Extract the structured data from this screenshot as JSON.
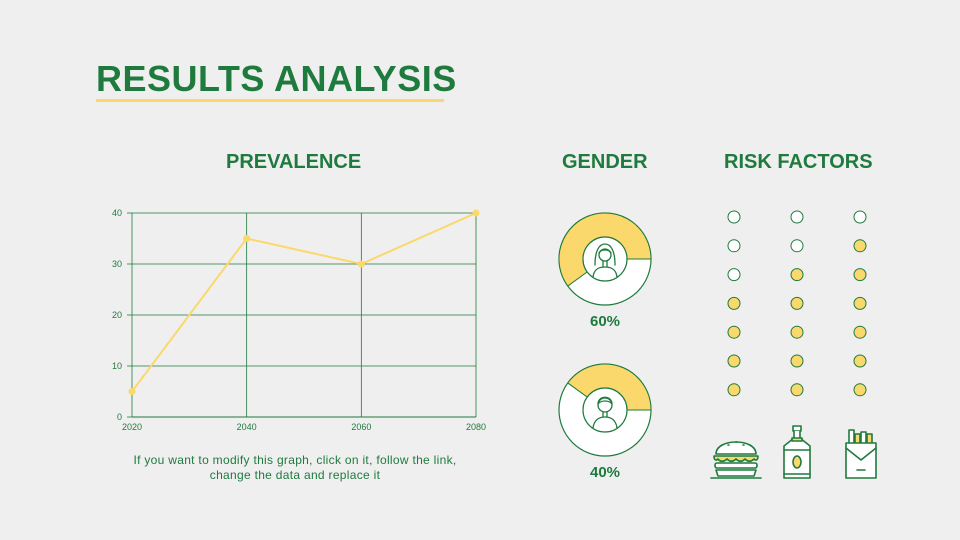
{
  "title": "RESULTS ANALYSIS",
  "sections": {
    "prevalence": "PREVALENCE",
    "gender": "GENDER",
    "risk_factors": "RISK FACTORS"
  },
  "caption": "If you want to modify this graph, click on it, follow the link, change the data and replace it",
  "colors": {
    "green": "#1f7a3e",
    "yellow": "#fbd86b",
    "background": "#efefef"
  },
  "chart_data": [
    {
      "type": "line",
      "x": [
        2020,
        2040,
        2060,
        2080
      ],
      "series": [
        {
          "values": [
            5,
            35,
            30,
            40
          ]
        }
      ],
      "xticks": [
        "2020",
        "2040",
        "2060",
        "2080"
      ],
      "yticks": [
        "0",
        "10",
        "20",
        "30",
        "40"
      ],
      "ylim": [
        0,
        40
      ],
      "grid": true
    },
    {
      "type": "pie",
      "categories": [
        "female",
        "male"
      ],
      "values": [
        60,
        40
      ],
      "labels": [
        "60%",
        "40%"
      ],
      "icons": [
        "woman-icon",
        "man-icon"
      ]
    },
    {
      "type": "dot-matrix",
      "rows": 7,
      "filled_counts": [
        4,
        5,
        6
      ],
      "icons": [
        "burger-icon",
        "bottle-icon",
        "cigarette-pack-icon"
      ]
    }
  ]
}
